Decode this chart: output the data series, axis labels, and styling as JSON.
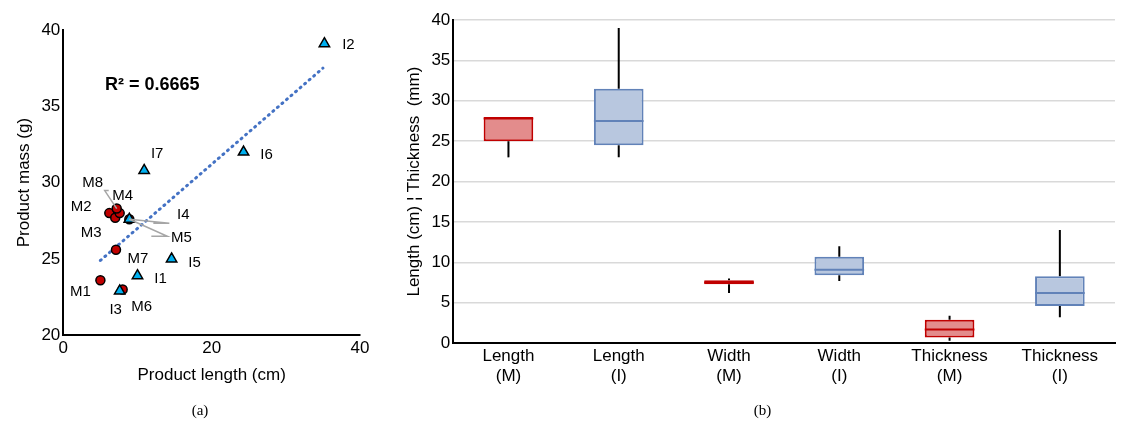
{
  "chart_data": [
    {
      "type": "scatter",
      "xlabel": "Product length (cm)",
      "ylabel": "Product mass (g)",
      "xlim": [
        0,
        40
      ],
      "xticks": [
        0,
        20,
        40
      ],
      "ylim": [
        20,
        40
      ],
      "yticks": [
        20,
        25,
        30,
        35,
        40
      ],
      "grid": false,
      "legend": false,
      "series": [
        {
          "color": "#c00000",
          "marker": "circle",
          "x": [
            5.0,
            6.2,
            7.0,
            7.6,
            8.9,
            8.0,
            7.1,
            7.2
          ],
          "values": [
            23.6,
            28.0,
            27.7,
            28.0,
            27.6,
            23.0,
            25.6,
            28.3
          ]
        },
        {
          "color": "#00b0f0",
          "marker": "triangle",
          "x": [
            10.0,
            35.2,
            7.6,
            8.9,
            14.6,
            24.3,
            10.9
          ],
          "values": [
            23.9,
            39.1,
            22.9,
            27.6,
            25.0,
            32.0,
            30.8
          ]
        },
        {
          "type": "line",
          "color": "#4472c4",
          "marker": "none",
          "line_style": "dotted",
          "x": [
            5.0,
            35.0
          ],
          "values": [
            24.9,
            37.5
          ]
        }
      ],
      "annotations": [
        {
          "text": "M1",
          "x": 5.0,
          "y": 23.6
        },
        {
          "text": "M2",
          "x": 6.2,
          "y": 28.0
        },
        {
          "text": "M3",
          "x": 7.0,
          "y": 27.7
        },
        {
          "text": "M4",
          "x": 7.6,
          "y": 28.0
        },
        {
          "text": "M5",
          "x": 8.9,
          "y": 27.6
        },
        {
          "text": "M6",
          "x": 8.0,
          "y": 23.0
        },
        {
          "text": "M7",
          "x": 7.1,
          "y": 25.6
        },
        {
          "text": "M8",
          "x": 7.2,
          "y": 28.3
        },
        {
          "text": "I1",
          "x": 10.0,
          "y": 23.9
        },
        {
          "text": "I2",
          "x": 35.2,
          "y": 39.1
        },
        {
          "text": "I3",
          "x": 7.6,
          "y": 22.9
        },
        {
          "text": "I4",
          "x": 8.9,
          "y": 27.6
        },
        {
          "text": "I5",
          "x": 14.6,
          "y": 25.0
        },
        {
          "text": "I6",
          "x": 24.3,
          "y": 32.0
        },
        {
          "text": "I7",
          "x": 10.9,
          "y": 30.8
        },
        "R² = 0.6665",
        "(a)"
      ]
    },
    {
      "type": "box",
      "ylabel": "Length (cm) ¦ Thickness  (mm)",
      "categories": [
        "Length (M)",
        "Length (I)",
        "Width (M)",
        "Width (I)",
        "Thickness (M)",
        "Thickness (I)"
      ],
      "ylim": [
        0,
        40
      ],
      "yticks": [
        0,
        5,
        10,
        15,
        20,
        25,
        30,
        35,
        40
      ],
      "grid": "y",
      "legend": false,
      "colors": [
        "#c00000",
        "#6182b8",
        "#c00000",
        "#6182b8",
        "#c00000",
        "#6182b8"
      ],
      "boxes": [
        {
          "low": 23,
          "q1": 25,
          "median": 27.8,
          "q3": 28,
          "high": 28
        },
        {
          "low": 23,
          "q1": 24.5,
          "median": 27.5,
          "q3": 31.5,
          "high": 39
        },
        {
          "low": 6.2,
          "q1": 7.3,
          "median": 7.5,
          "q3": 7.8,
          "high": 8
        },
        {
          "low": 7.7,
          "q1": 8.4,
          "median": 9.1,
          "q3": 10.7,
          "high": 12
        },
        {
          "low": 0.3,
          "q1": 0.7,
          "median": 1.7,
          "q3": 2.9,
          "high": 3.4
        },
        {
          "low": 3.2,
          "q1": 4.6,
          "median": 6.2,
          "q3": 8.3,
          "high": 14
        }
      ],
      "annotations": [
        "(b)"
      ]
    }
  ]
}
